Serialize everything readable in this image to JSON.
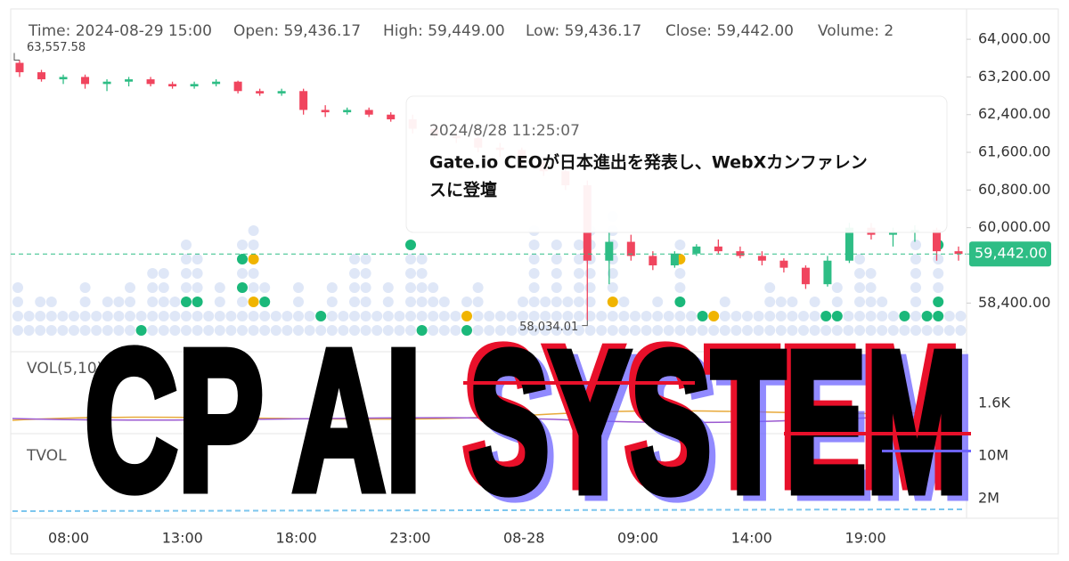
{
  "header": {
    "time": "Time: 2024-08-29 15:00",
    "open": "Open: 59,436.17",
    "high": "High: 59,449.00",
    "low": "Low: 59,436.17",
    "close": "Close: 59,442.00",
    "volume": "Volume: 2"
  },
  "price_axis": {
    "ylim": [
      57650,
      64550
    ],
    "ticks": [
      {
        "value": 64000,
        "label": "64,000.00"
      },
      {
        "value": 63200,
        "label": "63,200.00"
      },
      {
        "value": 62400,
        "label": "62,400.00"
      },
      {
        "value": 61600,
        "label": "61,600.00"
      },
      {
        "value": 60800,
        "label": "60,800.00"
      },
      {
        "value": 60000,
        "label": "60,000.00"
      },
      {
        "value": 58400,
        "label": "58,400.00"
      }
    ],
    "last_price": {
      "value": 59442,
      "label": "59,442.00"
    },
    "max_annotation": {
      "value": 63557.58,
      "label": "63,557.58"
    },
    "min_annotation": {
      "value": 58034.01,
      "label": "58,034.01"
    }
  },
  "candles": {
    "up_color": "#2ebd85",
    "down_color": "#f0455e",
    "items": [
      {
        "o": 63500,
        "h": 63557.58,
        "l": 63200,
        "c": 63300
      },
      {
        "o": 63300,
        "h": 63350,
        "l": 63100,
        "c": 63150
      },
      {
        "o": 63150,
        "h": 63250,
        "l": 63050,
        "c": 63200
      },
      {
        "o": 63200,
        "h": 63250,
        "l": 62950,
        "c": 63050
      },
      {
        "o": 63050,
        "h": 63150,
        "l": 62900,
        "c": 63100
      },
      {
        "o": 63100,
        "h": 63200,
        "l": 63000,
        "c": 63150
      },
      {
        "o": 63150,
        "h": 63200,
        "l": 63000,
        "c": 63050
      },
      {
        "o": 63050,
        "h": 63100,
        "l": 62950,
        "c": 63000
      },
      {
        "o": 63000,
        "h": 63100,
        "l": 62950,
        "c": 63050
      },
      {
        "o": 63050,
        "h": 63150,
        "l": 63000,
        "c": 63100
      },
      {
        "o": 63100,
        "h": 63120,
        "l": 62850,
        "c": 62900
      },
      {
        "o": 62900,
        "h": 62950,
        "l": 62800,
        "c": 62850
      },
      {
        "o": 62850,
        "h": 62950,
        "l": 62800,
        "c": 62900
      },
      {
        "o": 62900,
        "h": 62950,
        "l": 62400,
        "c": 62500
      },
      {
        "o": 62500,
        "h": 62600,
        "l": 62350,
        "c": 62450
      },
      {
        "o": 62450,
        "h": 62550,
        "l": 62400,
        "c": 62500
      },
      {
        "o": 62500,
        "h": 62550,
        "l": 62350,
        "c": 62400
      },
      {
        "o": 62400,
        "h": 62450,
        "l": 62250,
        "c": 62300
      },
      {
        "o": 62300,
        "h": 62400,
        "l": 62000,
        "c": 62100
      },
      {
        "o": 62100,
        "h": 62200,
        "l": 61900,
        "c": 61950
      },
      {
        "o": 61950,
        "h": 62050,
        "l": 61800,
        "c": 61900
      },
      {
        "o": 61900,
        "h": 61950,
        "l": 61600,
        "c": 61700
      },
      {
        "o": 61700,
        "h": 61800,
        "l": 61500,
        "c": 61650
      },
      {
        "o": 61650,
        "h": 61700,
        "l": 61300,
        "c": 61400
      },
      {
        "o": 61400,
        "h": 61500,
        "l": 61100,
        "c": 61200
      },
      {
        "o": 61200,
        "h": 61300,
        "l": 60800,
        "c": 60900
      },
      {
        "o": 60900,
        "h": 61000,
        "l": 58034.01,
        "c": 59300
      },
      {
        "o": 59300,
        "h": 59900,
        "l": 58800,
        "c": 59700
      },
      {
        "o": 59700,
        "h": 59850,
        "l": 59300,
        "c": 59400
      },
      {
        "o": 59400,
        "h": 59500,
        "l": 59100,
        "c": 59200
      },
      {
        "o": 59200,
        "h": 59500,
        "l": 59150,
        "c": 59450
      },
      {
        "o": 59450,
        "h": 59650,
        "l": 59400,
        "c": 59600
      },
      {
        "o": 59600,
        "h": 59750,
        "l": 59450,
        "c": 59500
      },
      {
        "o": 59500,
        "h": 59600,
        "l": 59350,
        "c": 59400
      },
      {
        "o": 59400,
        "h": 59500,
        "l": 59200,
        "c": 59300
      },
      {
        "o": 59300,
        "h": 59350,
        "l": 59050,
        "c": 59150
      },
      {
        "o": 59150,
        "h": 59200,
        "l": 58700,
        "c": 58800
      },
      {
        "o": 58800,
        "h": 59400,
        "l": 58750,
        "c": 59300
      },
      {
        "o": 59300,
        "h": 60100,
        "l": 59250,
        "c": 60000
      },
      {
        "o": 60000,
        "h": 60100,
        "l": 59750,
        "c": 59850
      },
      {
        "o": 59850,
        "h": 60000,
        "l": 59600,
        "c": 59900
      },
      {
        "o": 59900,
        "h": 60050,
        "l": 59700,
        "c": 59950
      },
      {
        "o": 59950,
        "h": 60000,
        "l": 59300,
        "c": 59500
      },
      {
        "o": 59500,
        "h": 59600,
        "l": 59300,
        "c": 59442
      }
    ]
  },
  "time_axis": [
    "08:00",
    "13:00",
    "18:00",
    "23:00",
    "08-28",
    "09:00",
    "14:00",
    "19:00"
  ],
  "volume_pane": {
    "label": "VOL(5,10)",
    "tick": "1.6K"
  },
  "tvol_pane": {
    "label": "TVOL",
    "ticks": [
      "10M",
      "2M"
    ]
  },
  "tooltip": {
    "date": "2024/8/28 11:25:07",
    "headline": [
      "Gate.io CEOが日本進出を発表し、WebXカンファレン",
      "スに登壇"
    ]
  },
  "overlay": {
    "left": "CP AI",
    "right": "SYSTEM"
  }
}
